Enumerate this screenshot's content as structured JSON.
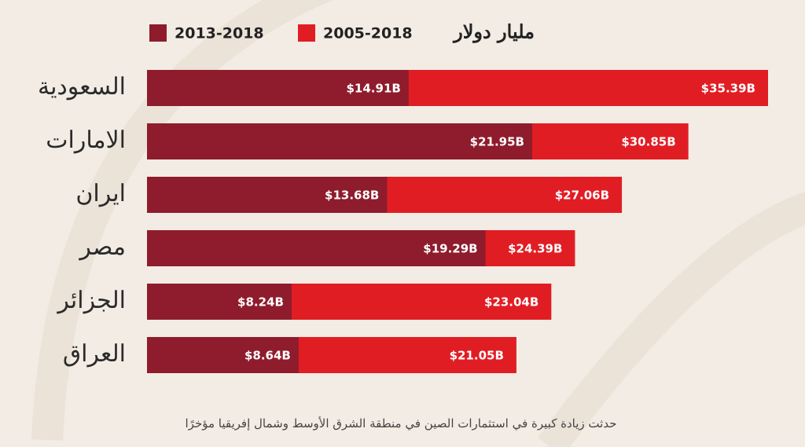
{
  "chart_data": {
    "type": "bar",
    "orientation": "horizontal",
    "overlap": true,
    "title": "مليار دولار",
    "caption": "حدثت زيادة كبيرة في استثمارات الصين في منطقة الشرق الأوسط وشمال إفريقيا مؤخرًا",
    "categories": [
      "السعودية",
      "الامارات",
      "ايران",
      "مصر",
      "الجزائر",
      "العراق"
    ],
    "series": [
      {
        "name": "2013-2018",
        "color": "#8e1c2c",
        "values": [
          14.91,
          21.95,
          13.68,
          19.29,
          8.24,
          8.64
        ],
        "value_labels": [
          "$14.91B",
          "$21.95B",
          "$13.68B",
          "$19.29B",
          "$8.24B",
          "$8.64B"
        ]
      },
      {
        "name": "2005-2018",
        "color": "#e11d24",
        "values": [
          35.39,
          30.85,
          27.06,
          24.39,
          23.04,
          21.05
        ],
        "value_labels": [
          "$35.39B",
          "$30.85B",
          "$27.06B",
          "$24.39B",
          "$23.04B",
          "$21.05B"
        ]
      }
    ]
  }
}
